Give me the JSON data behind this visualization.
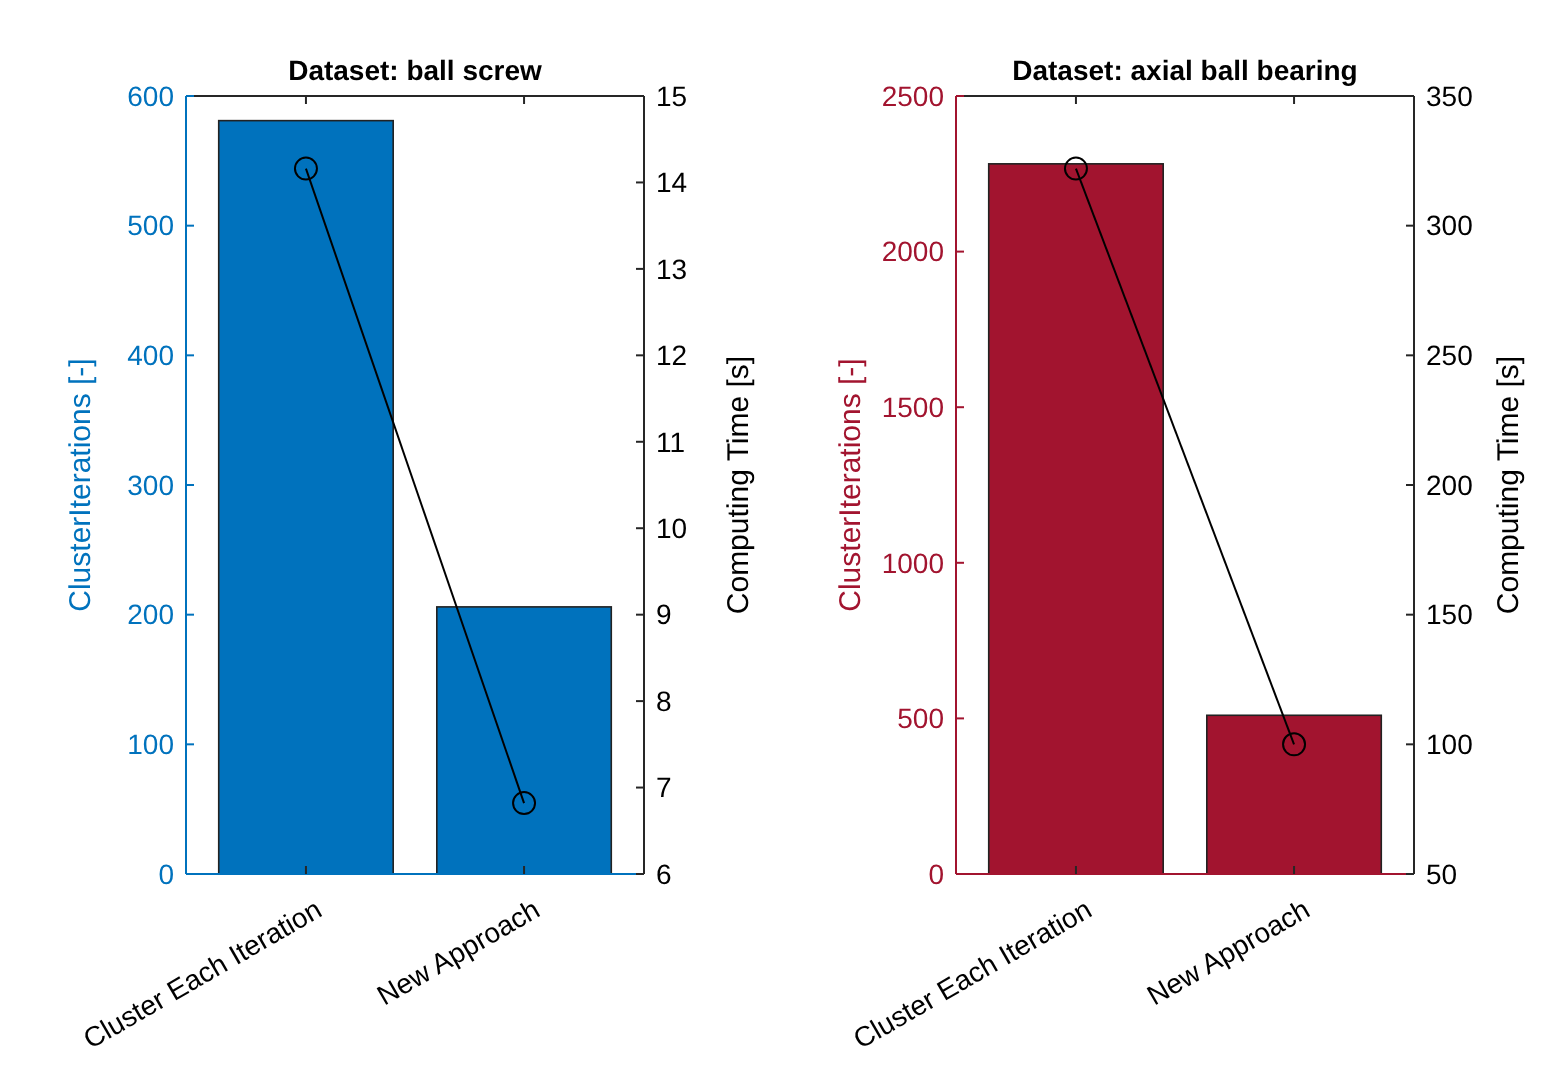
{
  "chart_data": [
    {
      "type": "bar",
      "title": "Dataset: ball screw",
      "categories": [
        "Cluster Each Iteration",
        "New Approach"
      ],
      "ylabel": "ClusterIterations [-]",
      "y2label": "Computing Time [s]",
      "ylim": [
        0,
        600
      ],
      "yticks": [
        0,
        100,
        200,
        300,
        400,
        500,
        600
      ],
      "y2lim": [
        6,
        15
      ],
      "y2ticks": [
        6,
        7,
        8,
        9,
        10,
        11,
        12,
        13,
        14,
        15
      ],
      "series": [
        {
          "color": "#0072bd",
          "values": [
            581,
            206
          ]
        },
        {
          "type": "line",
          "axis": "y2",
          "color": "#000000",
          "marker": "circle",
          "values": [
            14.16,
            6.82
          ]
        }
      ]
    },
    {
      "type": "bar",
      "title": "Dataset: axial ball bearing",
      "categories": [
        "Cluster Each Iteration",
        "New Approach"
      ],
      "ylabel": "ClusterIterations [-]",
      "y2label": "Computing Time [s]",
      "ylim": [
        0,
        2500
      ],
      "yticks": [
        0,
        500,
        1000,
        1500,
        2000,
        2500
      ],
      "y2lim": [
        50,
        350
      ],
      "y2ticks": [
        50,
        100,
        150,
        200,
        250,
        300,
        350
      ],
      "series": [
        {
          "color": "#a2142f",
          "values": [
            2282,
            510
          ]
        },
        {
          "type": "line",
          "axis": "y2",
          "color": "#000000",
          "marker": "circle",
          "values": [
            322,
            100
          ]
        }
      ]
    }
  ]
}
